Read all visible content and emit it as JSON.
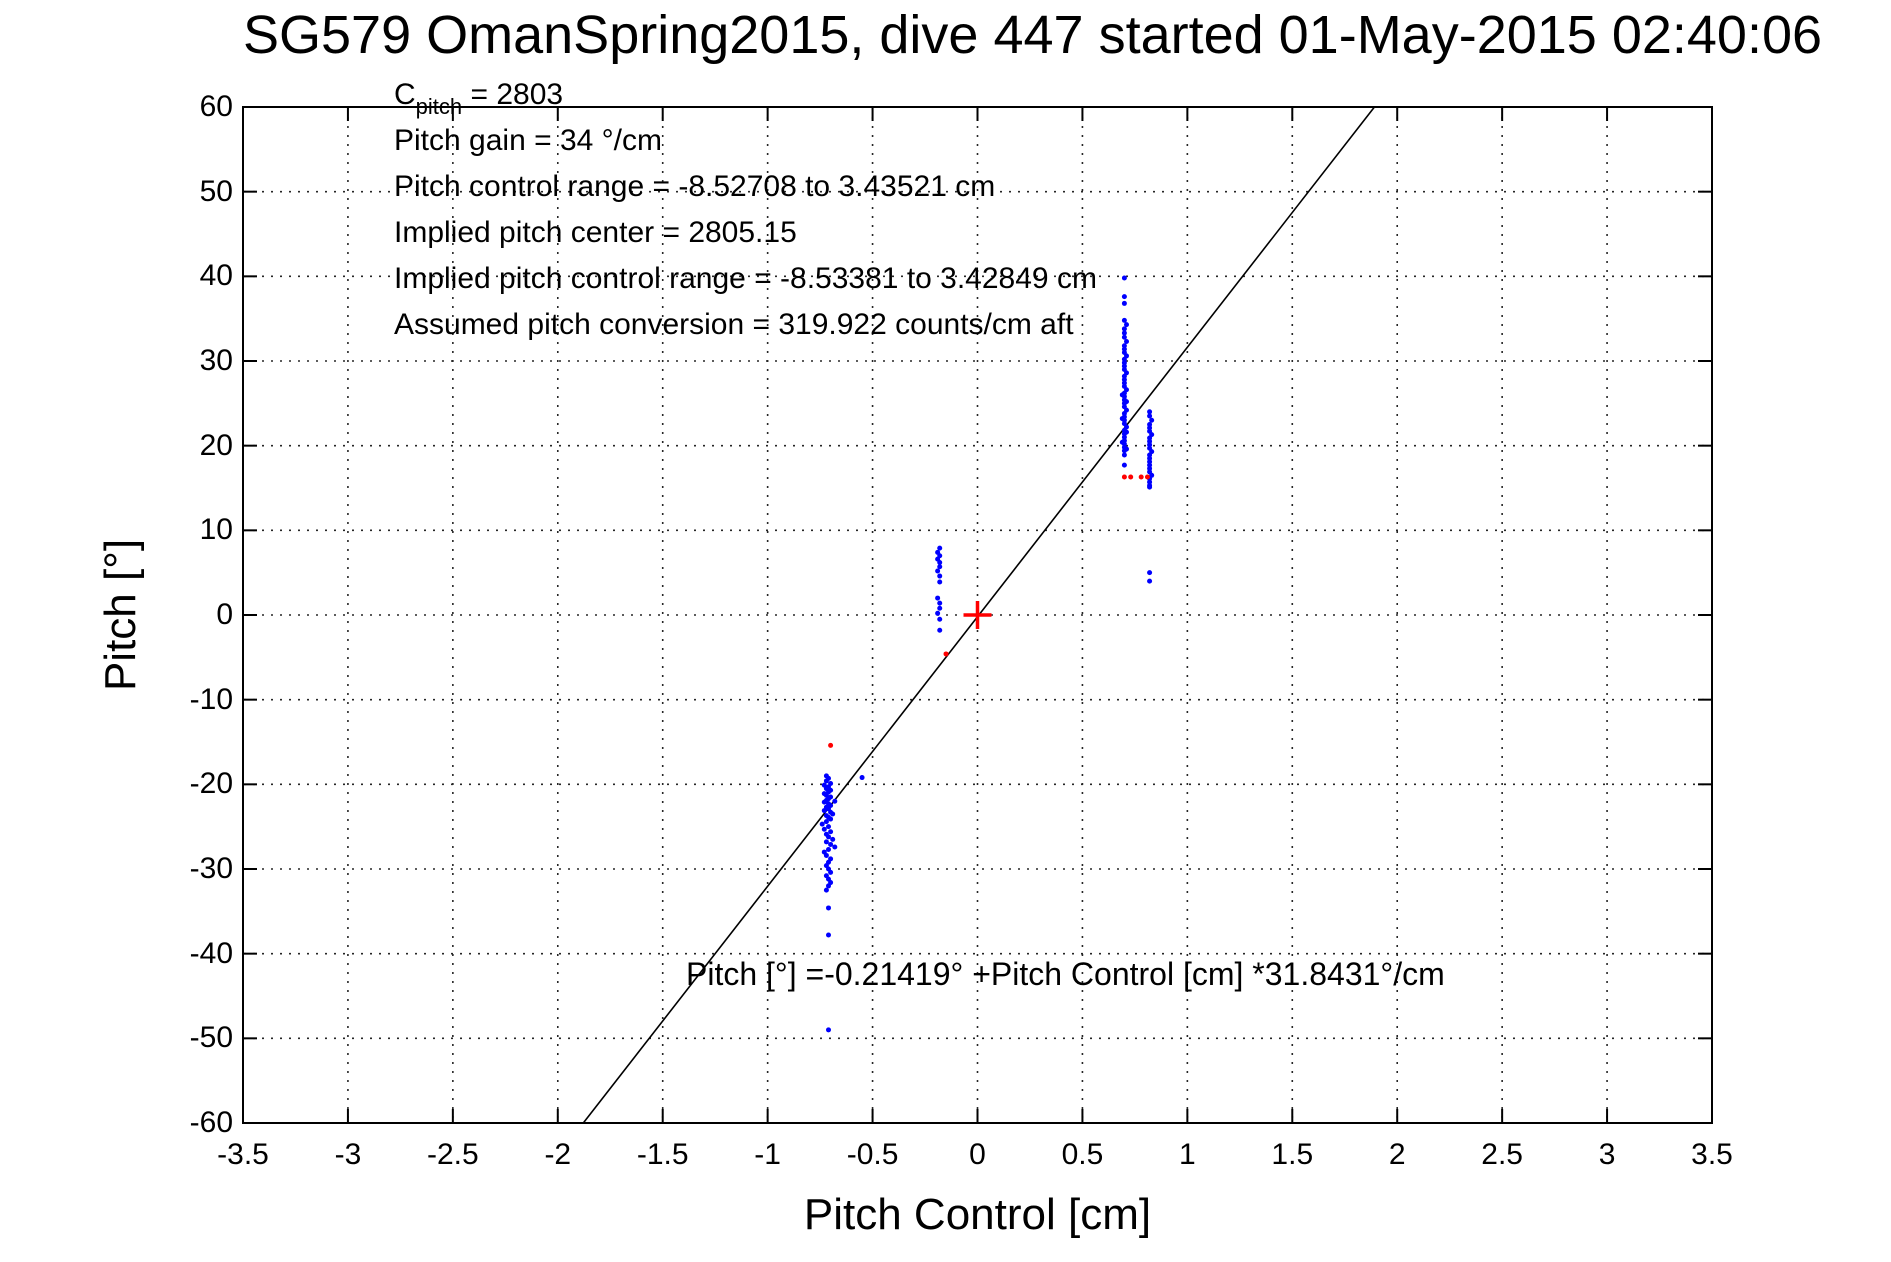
{
  "chart_data": {
    "type": "scatter",
    "title": "SG579 OmanSpring2015, dive 447 started 01-May-2015 02:40:06",
    "xlabel": "Pitch Control [cm]",
    "ylabel": "Pitch [°]",
    "xlim": [
      -3.5,
      3.5
    ],
    "ylim": [
      -60,
      60
    ],
    "x_ticks": [
      -3.5,
      -3,
      -2.5,
      -2,
      -1.5,
      -1,
      -0.5,
      0,
      0.5,
      1,
      1.5,
      2,
      2.5,
      3,
      3.5
    ],
    "x_tick_labels": [
      "-3.5",
      "-3",
      "-2.5",
      "-2",
      "-1.5",
      "-1",
      "-0.5",
      "0",
      "0.5",
      "1",
      "1.5",
      "2",
      "2.5",
      "3",
      "3.5"
    ],
    "y_ticks": [
      -60,
      -50,
      -40,
      -30,
      -20,
      -10,
      0,
      10,
      20,
      30,
      40,
      50,
      60
    ],
    "y_tick_labels": [
      "-60",
      "-50",
      "-40",
      "-30",
      "-20",
      "-10",
      "0",
      "10",
      "20",
      "30",
      "40",
      "50",
      "60"
    ],
    "grid": "dotted",
    "legend": "none",
    "annotation_block": {
      "c_label": "C",
      "c_sub": "pitch",
      "c_value": " = 2803",
      "lines": [
        "Pitch gain = 34 °/cm",
        "Pitch control range = -8.52708 to 3.43521 cm",
        "Implied pitch center = 2805.15",
        "Implied pitch control range = -8.53381 to 3.42849 cm",
        "Assumed pitch conversion = 319.922 counts/cm aft"
      ]
    },
    "fit_label": "Pitch [°] =-0.21419° +Pitch Control [cm] *31.8431°/cm",
    "fit_line": {
      "slope_deg_per_cm": 31.8431,
      "intercept_deg": -0.21419,
      "x_start": -1.8785,
      "x_end": 1.8915,
      "color": "#000000"
    },
    "series": [
      {
        "name": "pitch-observed",
        "marker": "dot",
        "color": "#0000ff",
        "points": [
          [
            -0.72,
            -19.0
          ],
          [
            -0.71,
            -19.3
          ],
          [
            -0.72,
            -19.6
          ],
          [
            -0.7,
            -19.9
          ],
          [
            -0.73,
            -20.1
          ],
          [
            -0.71,
            -20.3
          ],
          [
            -0.72,
            -20.5
          ],
          [
            -0.7,
            -20.7
          ],
          [
            -0.71,
            -20.9
          ],
          [
            -0.73,
            -21.1
          ],
          [
            -0.72,
            -21.3
          ],
          [
            -0.7,
            -21.5
          ],
          [
            -0.71,
            -21.7
          ],
          [
            -0.72,
            -21.9
          ],
          [
            -0.68,
            -22.0
          ],
          [
            -0.73,
            -22.1
          ],
          [
            -0.71,
            -22.3
          ],
          [
            -0.7,
            -22.5
          ],
          [
            -0.72,
            -22.7
          ],
          [
            -0.71,
            -22.9
          ],
          [
            -0.73,
            -23.1
          ],
          [
            -0.7,
            -23.3
          ],
          [
            -0.69,
            -23.5
          ],
          [
            -0.72,
            -23.7
          ],
          [
            -0.71,
            -23.9
          ],
          [
            -0.7,
            -24.1
          ],
          [
            -0.72,
            -24.4
          ],
          [
            -0.74,
            -24.7
          ],
          [
            -0.71,
            -25.0
          ],
          [
            -0.73,
            -25.3
          ],
          [
            -0.7,
            -25.6
          ],
          [
            -0.72,
            -25.9
          ],
          [
            -0.71,
            -26.2
          ],
          [
            -0.69,
            -26.5
          ],
          [
            -0.72,
            -26.8
          ],
          [
            -0.7,
            -27.1
          ],
          [
            -0.68,
            -27.4
          ],
          [
            -0.71,
            -27.7
          ],
          [
            -0.73,
            -28.0
          ],
          [
            -0.72,
            -28.4
          ],
          [
            -0.7,
            -28.8
          ],
          [
            -0.71,
            -29.2
          ],
          [
            -0.72,
            -29.6
          ],
          [
            -0.71,
            -30.0
          ],
          [
            -0.7,
            -30.4
          ],
          [
            -0.72,
            -30.8
          ],
          [
            -0.71,
            -31.2
          ],
          [
            -0.7,
            -31.6
          ],
          [
            -0.71,
            -32.0
          ],
          [
            -0.72,
            -32.5
          ],
          [
            -0.71,
            -34.6
          ],
          [
            -0.71,
            -37.8
          ],
          [
            -0.71,
            -49.0
          ],
          [
            -0.55,
            -19.2
          ],
          [
            -0.18,
            7.9
          ],
          [
            -0.19,
            7.4
          ],
          [
            -0.18,
            7.0
          ],
          [
            -0.19,
            6.6
          ],
          [
            -0.18,
            6.2
          ],
          [
            -0.18,
            5.7
          ],
          [
            -0.19,
            5.2
          ],
          [
            -0.18,
            4.6
          ],
          [
            -0.18,
            3.9
          ],
          [
            -0.19,
            2.0
          ],
          [
            -0.18,
            1.4
          ],
          [
            -0.18,
            0.8
          ],
          [
            -0.19,
            0.2
          ],
          [
            -0.18,
            -0.5
          ],
          [
            -0.18,
            -1.8
          ],
          [
            0.7,
            39.8
          ],
          [
            0.7,
            37.6
          ],
          [
            0.7,
            36.8
          ],
          [
            0.7,
            34.8
          ],
          [
            0.71,
            34.3
          ],
          [
            0.7,
            33.8
          ],
          [
            0.7,
            33.3
          ],
          [
            0.7,
            32.8
          ],
          [
            0.71,
            32.3
          ],
          [
            0.7,
            31.8
          ],
          [
            0.7,
            31.4
          ],
          [
            0.7,
            31.0
          ],
          [
            0.71,
            30.6
          ],
          [
            0.7,
            30.2
          ],
          [
            0.7,
            29.8
          ],
          [
            0.7,
            29.4
          ],
          [
            0.7,
            29.0
          ],
          [
            0.71,
            28.6
          ],
          [
            0.7,
            28.2
          ],
          [
            0.7,
            27.8
          ],
          [
            0.7,
            27.4
          ],
          [
            0.7,
            27.0
          ],
          [
            0.71,
            26.6
          ],
          [
            0.69,
            26.0
          ],
          [
            0.7,
            26.2
          ],
          [
            0.7,
            25.8
          ],
          [
            0.7,
            25.4
          ],
          [
            0.71,
            25.2
          ],
          [
            0.7,
            25.0
          ],
          [
            0.7,
            24.6
          ],
          [
            0.71,
            24.2
          ],
          [
            0.7,
            23.8
          ],
          [
            0.7,
            23.4
          ],
          [
            0.69,
            23.2
          ],
          [
            0.7,
            23.0
          ],
          [
            0.7,
            22.6
          ],
          [
            0.71,
            22.2
          ],
          [
            0.7,
            21.8
          ],
          [
            0.71,
            21.6
          ],
          [
            0.7,
            21.4
          ],
          [
            0.7,
            21.0
          ],
          [
            0.7,
            20.6
          ],
          [
            0.69,
            20.4
          ],
          [
            0.7,
            20.2
          ],
          [
            0.7,
            19.8
          ],
          [
            0.71,
            19.6
          ],
          [
            0.7,
            19.4
          ],
          [
            0.7,
            18.9
          ],
          [
            0.7,
            17.7
          ],
          [
            0.82,
            24.0
          ],
          [
            0.82,
            23.5
          ],
          [
            0.83,
            23.0
          ],
          [
            0.82,
            22.5
          ],
          [
            0.82,
            22.1
          ],
          [
            0.82,
            21.7
          ],
          [
            0.83,
            21.3
          ],
          [
            0.82,
            20.9
          ],
          [
            0.82,
            20.5
          ],
          [
            0.82,
            20.1
          ],
          [
            0.82,
            19.7
          ],
          [
            0.83,
            19.3
          ],
          [
            0.82,
            18.9
          ],
          [
            0.82,
            18.5
          ],
          [
            0.82,
            18.1
          ],
          [
            0.82,
            17.7
          ],
          [
            0.82,
            17.3
          ],
          [
            0.82,
            16.9
          ],
          [
            0.83,
            16.5
          ],
          [
            0.82,
            16.1
          ],
          [
            0.82,
            15.7
          ],
          [
            0.82,
            15.3
          ],
          [
            0.82,
            15.1
          ],
          [
            0.82,
            5.0
          ],
          [
            0.82,
            4.0
          ]
        ]
      },
      {
        "name": "pitch-flagged",
        "marker": "dot",
        "color": "#ff0000",
        "points": [
          [
            -0.7,
            -15.4
          ],
          [
            -0.15,
            -4.6
          ],
          [
            0.7,
            16.3
          ],
          [
            0.73,
            16.3
          ],
          [
            0.78,
            16.3
          ],
          [
            0.81,
            16.3
          ]
        ]
      },
      {
        "name": "implied-pitch-center-marker",
        "marker": "plus",
        "color": "#ff0000",
        "size": 14,
        "points": [
          [
            0.0,
            0.0
          ]
        ]
      }
    ]
  },
  "colors": {
    "background": "#ffffff",
    "axis": "#000000",
    "grid": "#262626",
    "observed": "#0000ff",
    "flagged": "#ff0000"
  }
}
